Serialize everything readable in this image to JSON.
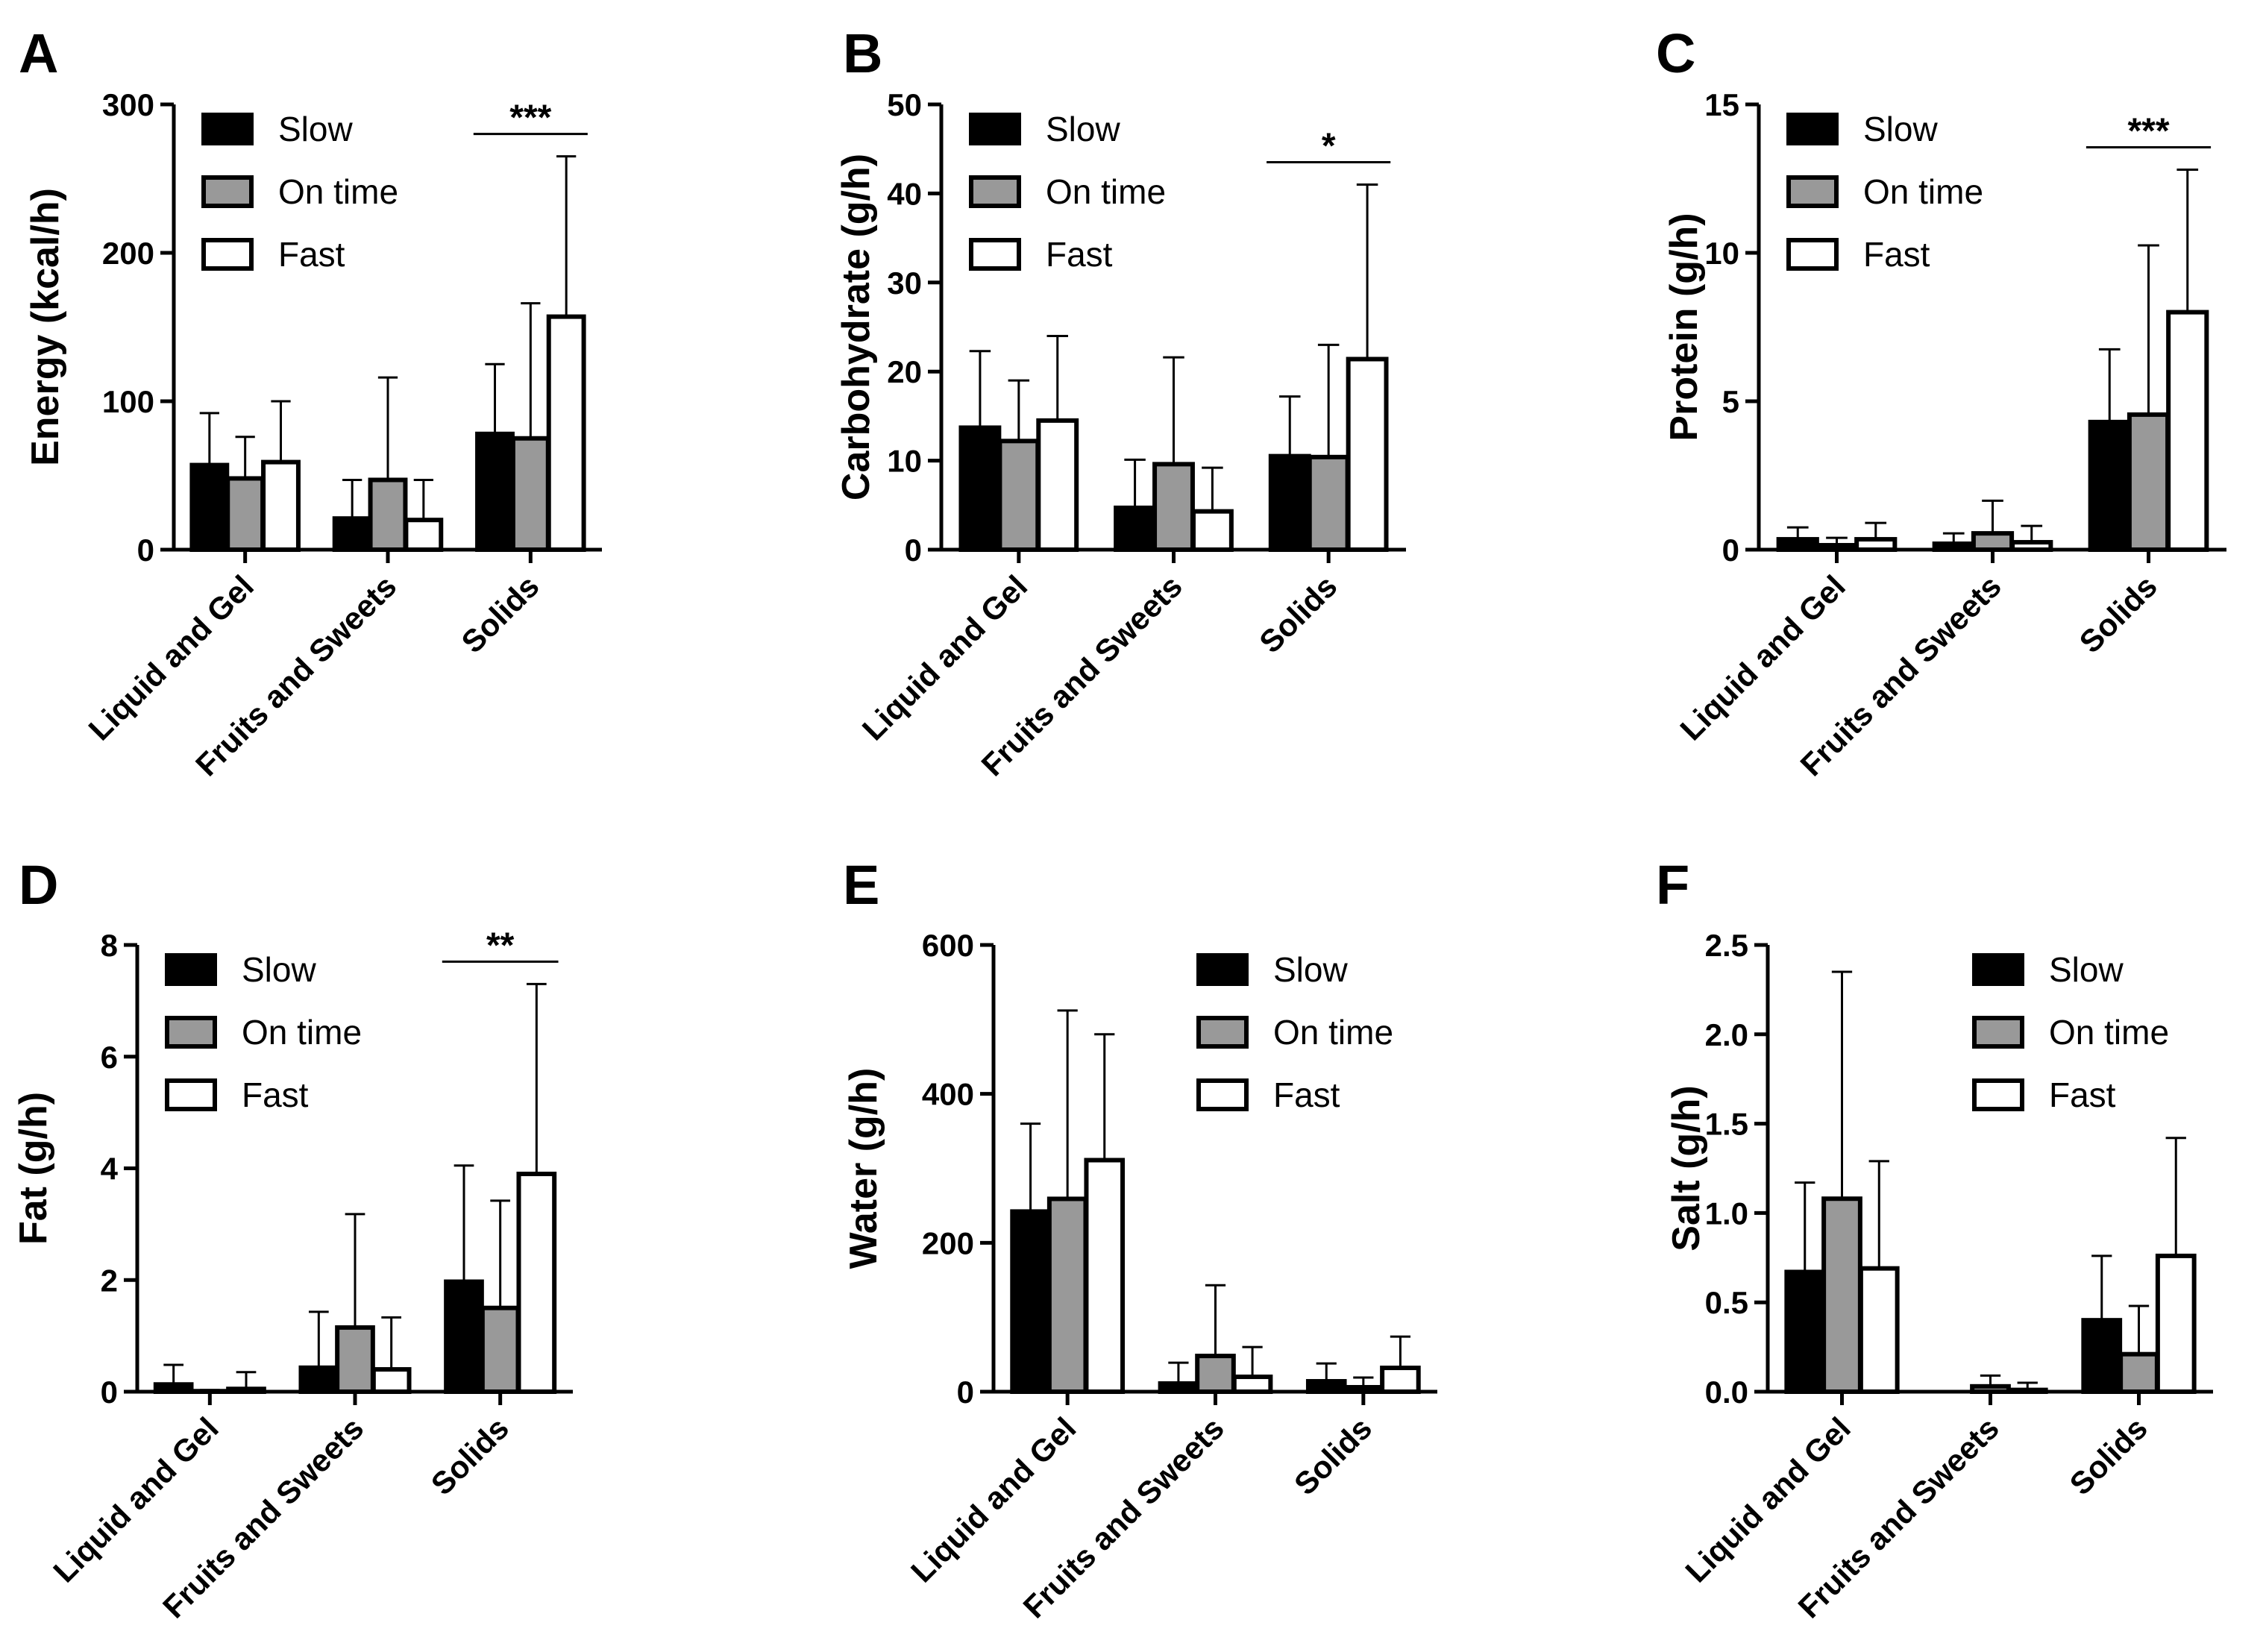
{
  "chart_data": [
    {
      "type": "bar",
      "panel": "A",
      "ylabel": "Energy (kcal/h)",
      "ylim": [
        0,
        300
      ],
      "yticks": [
        0,
        100,
        200,
        300
      ],
      "categories": [
        "Liquid and Gel",
        "Fruits and Sweets",
        "Solids"
      ],
      "legend": "top-left",
      "series": [
        {
          "name": "Slow",
          "color": "#000000",
          "values": [
            57,
            21,
            78
          ],
          "errors": [
            35,
            26,
            47
          ]
        },
        {
          "name": "On time",
          "color": "#999999",
          "values": [
            48,
            47,
            75
          ],
          "errors": [
            28,
            69,
            91
          ]
        },
        {
          "name": "Fast",
          "color": "#ffffff",
          "values": [
            59,
            20,
            157
          ],
          "errors": [
            41,
            27,
            108
          ]
        }
      ],
      "significance": [
        {
          "category": "Solids",
          "label": "***"
        }
      ]
    },
    {
      "type": "bar",
      "panel": "B",
      "ylabel": "Carbohydrate (g/h)",
      "ylim": [
        0,
        50
      ],
      "yticks": [
        0,
        10,
        20,
        30,
        40,
        50
      ],
      "categories": [
        "Liquid and Gel",
        "Fruits and Sweets",
        "Solids"
      ],
      "legend": "top-left",
      "series": [
        {
          "name": "Slow",
          "color": "#000000",
          "values": [
            13.7,
            4.7,
            10.5
          ],
          "errors": [
            8.6,
            5.4,
            6.7
          ]
        },
        {
          "name": "On time",
          "color": "#999999",
          "values": [
            12.2,
            9.6,
            10.4
          ],
          "errors": [
            6.8,
            12,
            12.6
          ]
        },
        {
          "name": "Fast",
          "color": "#ffffff",
          "values": [
            14.5,
            4.3,
            21.4
          ],
          "errors": [
            9.5,
            4.9,
            19.6
          ]
        }
      ],
      "significance": [
        {
          "category": "Solids",
          "label": "*"
        }
      ]
    },
    {
      "type": "bar",
      "panel": "C",
      "ylabel": "Protein (g/h)",
      "ylim": [
        0,
        15
      ],
      "yticks": [
        0,
        5,
        10,
        15
      ],
      "categories": [
        "Liquid and Gel",
        "Fruits and Sweets",
        "Solids"
      ],
      "legend": "top-left",
      "series": [
        {
          "name": "Slow",
          "color": "#000000",
          "values": [
            0.35,
            0.2,
            4.3
          ],
          "errors": [
            0.4,
            0.35,
            2.45
          ]
        },
        {
          "name": "On time",
          "color": "#999999",
          "values": [
            0.15,
            0.55,
            4.55
          ],
          "errors": [
            0.25,
            1.1,
            5.7
          ]
        },
        {
          "name": "Fast",
          "color": "#ffffff",
          "values": [
            0.35,
            0.25,
            8.0
          ],
          "errors": [
            0.55,
            0.55,
            4.8
          ]
        }
      ],
      "significance": [
        {
          "category": "Solids",
          "label": "***"
        }
      ]
    },
    {
      "type": "bar",
      "panel": "D",
      "ylabel": "Fat (g/h)",
      "ylim": [
        0,
        8
      ],
      "yticks": [
        0,
        2,
        4,
        6,
        8
      ],
      "categories": [
        "Liquid and Gel",
        "Fruits and Sweets",
        "Solids"
      ],
      "legend": "top-left",
      "series": [
        {
          "name": "Slow",
          "color": "#000000",
          "values": [
            0.13,
            0.43,
            1.97
          ],
          "errors": [
            0.35,
            1.0,
            2.08
          ]
        },
        {
          "name": "On time",
          "color": "#999999",
          "values": [
            0.01,
            1.15,
            1.5
          ],
          "errors": [
            0.02,
            2.03,
            1.92
          ]
        },
        {
          "name": "Fast",
          "color": "#ffffff",
          "values": [
            0.05,
            0.4,
            3.9
          ],
          "errors": [
            0.3,
            0.93,
            3.4
          ]
        }
      ],
      "significance": [
        {
          "category": "Solids",
          "label": "**"
        }
      ]
    },
    {
      "type": "bar",
      "panel": "E",
      "ylabel": "Water (g/h)",
      "ylim": [
        0,
        600
      ],
      "yticks": [
        0,
        200,
        400,
        600
      ],
      "categories": [
        "Liquid and Gel",
        "Fruits and Sweets",
        "Solids"
      ],
      "legend": "top-right",
      "series": [
        {
          "name": "Slow",
          "color": "#000000",
          "values": [
            242,
            11,
            14
          ],
          "errors": [
            118,
            28,
            24
          ]
        },
        {
          "name": "On time",
          "color": "#999999",
          "values": [
            259,
            48,
            6
          ],
          "errors": [
            253,
            95,
            13
          ]
        },
        {
          "name": "Fast",
          "color": "#ffffff",
          "values": [
            311,
            20,
            32
          ],
          "errors": [
            169,
            40,
            42
          ]
        }
      ],
      "significance": []
    },
    {
      "type": "bar",
      "panel": "F",
      "ylabel": "Salt (g/h)",
      "ylim": [
        0,
        2.5
      ],
      "yticks": [
        "0.0",
        "0.5",
        "1.0",
        "1.5",
        "2.0",
        "2.5"
      ],
      "categories": [
        "Liquid and Gel",
        "Fruits and Sweets",
        "Solids"
      ],
      "legend": "top-right",
      "series": [
        {
          "name": "Slow",
          "color": "#000000",
          "values": [
            0.67,
            0.0,
            0.4
          ],
          "errors": [
            0.5,
            0.0,
            0.36
          ]
        },
        {
          "name": "On time",
          "color": "#999999",
          "values": [
            1.08,
            0.03,
            0.21
          ],
          "errors": [
            1.27,
            0.06,
            0.27
          ]
        },
        {
          "name": "Fast",
          "color": "#ffffff",
          "values": [
            0.69,
            0.01,
            0.76
          ],
          "errors": [
            0.6,
            0.04,
            0.66
          ]
        }
      ],
      "significance": []
    }
  ]
}
